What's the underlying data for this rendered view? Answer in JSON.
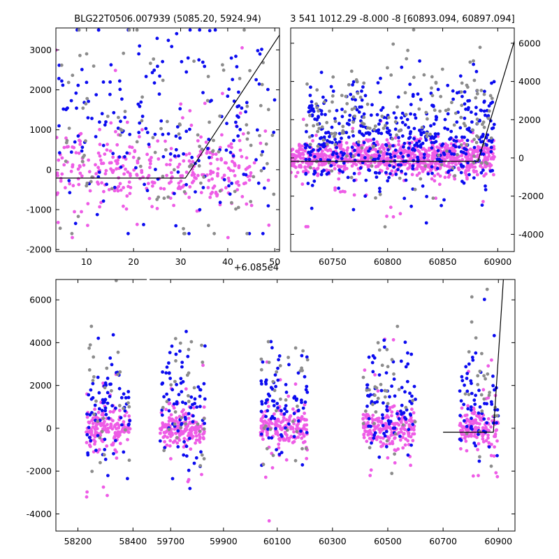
{
  "colors": {
    "pink": "#EE5CE6",
    "blue": "#0B0BF0",
    "gray": "#8C8C8C",
    "model": "#000000"
  },
  "chart_data": [
    {
      "id": "top-left",
      "type": "scatter",
      "title": "BLG22T0506.007939 (5085.20, 5924.94)",
      "x_offset_label": "+6.085e4",
      "xlim": [
        3.5,
        51
      ],
      "ylim": [
        -2050,
        3550
      ],
      "xticks": [
        10,
        20,
        30,
        40,
        50
      ],
      "yticks": [
        -2000,
        -1000,
        0,
        1000,
        2000,
        3000
      ],
      "ytick_side": "left",
      "model_line": [
        [
          3.5,
          -210
        ],
        [
          31,
          -210
        ],
        [
          52,
          3550
        ]
      ],
      "clouds": [
        {
          "color": "pink",
          "n": 260,
          "x": [
            3.5,
            45
          ],
          "y": [
            0,
            380
          ],
          "clip": [
            -1500,
            1200
          ]
        },
        {
          "color": "pink",
          "n": 60,
          "x": [
            3.5,
            50
          ],
          "y": [
            0,
            1100
          ],
          "clip": [
            -1700,
            3300
          ]
        },
        {
          "color": "blue",
          "n": 190,
          "x": [
            4,
            50
          ],
          "y": [
            1000,
            1300
          ],
          "clip": [
            -1600,
            3500
          ]
        },
        {
          "color": "gray",
          "n": 110,
          "x": [
            3.5,
            50
          ],
          "y": [
            700,
            1400
          ],
          "clip": [
            -1600,
            3500
          ]
        }
      ]
    },
    {
      "id": "top-right",
      "type": "scatter",
      "title": "3 541 1012.29 -8.000 -8 [60893.094, 60897.094]",
      "xlim": [
        60712,
        60915
      ],
      "ylim": [
        -4900,
        6800
      ],
      "xticks": [
        60750,
        60800,
        60850,
        60900
      ],
      "yticks": [
        -4000,
        -2000,
        0,
        2000,
        4000,
        6000
      ],
      "ytick_side": "right",
      "model_line": [
        [
          60712,
          -180
        ],
        [
          60882,
          -180
        ],
        [
          60915,
          6100
        ]
      ],
      "clouds": [
        {
          "color": "pink",
          "n": 800,
          "x": [
            60712,
            60897
          ],
          "y": [
            0,
            420
          ],
          "clip": [
            -2500,
            2500
          ]
        },
        {
          "color": "pink",
          "n": 60,
          "x": [
            60720,
            60897
          ],
          "y": [
            -300,
            1300
          ],
          "clip": [
            -3600,
            3500
          ]
        },
        {
          "color": "blue",
          "n": 480,
          "x": [
            60725,
            60897
          ],
          "y": [
            1000,
            1500
          ],
          "clip": [
            -4300,
            6500
          ]
        },
        {
          "color": "gray",
          "n": 170,
          "x": [
            60725,
            60897
          ],
          "y": [
            1500,
            1700
          ],
          "clip": [
            -4300,
            6700
          ]
        }
      ]
    },
    {
      "id": "bottom",
      "type": "scatter",
      "title": "",
      "segments": [
        {
          "xlim": [
            58120,
            58450
          ],
          "xticks": [
            58200,
            58400
          ],
          "seasons": [
            [
              58230,
              58390
            ]
          ]
        },
        {
          "xlim": [
            59620,
            60030
          ],
          "xticks": [
            59700,
            59900
          ],
          "seasons": [
            [
              59660,
              59830
            ]
          ]
        },
        {
          "xlim": [
            60030,
            60960
          ],
          "xticks": [
            60100,
            60300,
            60500,
            60700,
            60900
          ],
          "seasons": [
            [
              60040,
              60210
            ],
            [
              60410,
              60600
            ],
            [
              60760,
              60900
            ]
          ]
        }
      ],
      "ylim": [
        -4800,
        6950
      ],
      "yticks": [
        -4000,
        -2000,
        0,
        2000,
        4000,
        6000
      ],
      "ytick_side": "left",
      "model_line": [
        [
          60700,
          -180
        ],
        [
          60882,
          -180
        ],
        [
          60918,
          6950
        ]
      ],
      "clouds": [
        {
          "color": "pink",
          "n": 750,
          "y": [
            0,
            420
          ],
          "clip": [
            -2800,
            2800
          ]
        },
        {
          "color": "pink",
          "n": 70,
          "y": [
            200,
            1800
          ],
          "clip": [
            -4700,
            6700
          ]
        },
        {
          "color": "blue",
          "n": 380,
          "y": [
            1100,
            1300
          ],
          "clip": [
            -4700,
            6900
          ]
        },
        {
          "color": "gray",
          "n": 150,
          "y": [
            1600,
            1900
          ],
          "clip": [
            -4700,
            6900
          ]
        }
      ]
    }
  ]
}
